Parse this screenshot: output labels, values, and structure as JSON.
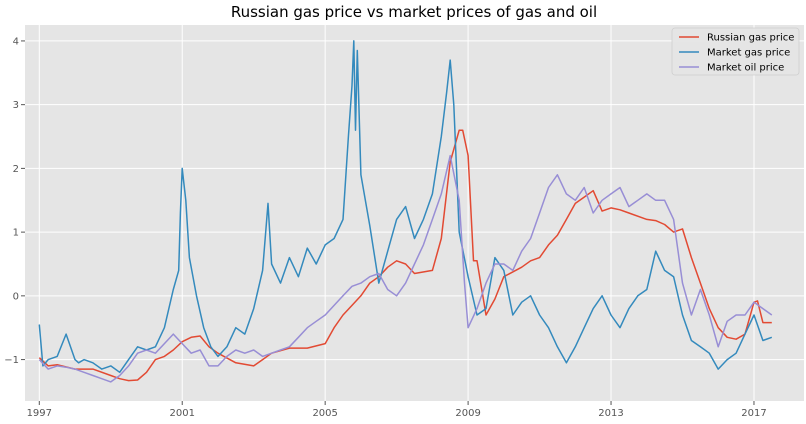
{
  "chart_data": {
    "type": "line",
    "title": "Russian gas price vs market prices of gas and oil",
    "xlabel": "",
    "ylabel": "",
    "xlim": [
      1996.6,
      2018.4
    ],
    "ylim": [
      -1.65,
      4.25
    ],
    "x_ticks": [
      {
        "value": 1997,
        "label": "1997"
      },
      {
        "value": 2001,
        "label": "2001"
      },
      {
        "value": 2005,
        "label": "2005"
      },
      {
        "value": 2009,
        "label": "2009"
      },
      {
        "value": 2013,
        "label": "2013"
      },
      {
        "value": 2017,
        "label": "2017"
      }
    ],
    "y_ticks": [
      {
        "value": -1,
        "label": "−1"
      },
      {
        "value": 0,
        "label": "0"
      },
      {
        "value": 1,
        "label": "1"
      },
      {
        "value": 2,
        "label": "2"
      },
      {
        "value": 3,
        "label": "3"
      },
      {
        "value": 4,
        "label": "4"
      }
    ],
    "grid": true,
    "legend_position": "top-right",
    "series": [
      {
        "name": "Russian gas price",
        "color": "#E24A33",
        "x": [
          1997.0,
          1997.25,
          1997.5,
          1998.0,
          1998.5,
          1999.0,
          1999.25,
          1999.5,
          1999.75,
          2000.0,
          2000.25,
          2000.5,
          2000.75,
          2001.0,
          2001.25,
          2001.5,
          2001.75,
          2002.0,
          2002.5,
          2003.0,
          2003.25,
          2003.5,
          2004.0,
          2004.5,
          2005.0,
          2005.25,
          2005.5,
          2005.75,
          2006.0,
          2006.25,
          2006.5,
          2006.75,
          2007.0,
          2007.25,
          2007.5,
          2008.0,
          2008.25,
          2008.5,
          2008.75,
          2008.85,
          2009.0,
          2009.15,
          2009.25,
          2009.5,
          2009.75,
          2010.0,
          2010.5,
          2010.75,
          2011.0,
          2011.25,
          2011.5,
          2011.75,
          2012.0,
          2012.25,
          2012.5,
          2012.75,
          2013.0,
          2013.25,
          2013.5,
          2014.0,
          2014.25,
          2014.5,
          2014.75,
          2015.0,
          2015.25,
          2015.5,
          2015.75,
          2016.0,
          2016.25,
          2016.5,
          2016.75,
          2017.0,
          2017.1,
          2017.25,
          2017.5
        ],
        "values": [
          -0.97,
          -1.1,
          -1.08,
          -1.15,
          -1.15,
          -1.25,
          -1.3,
          -1.33,
          -1.32,
          -1.2,
          -1.0,
          -0.95,
          -0.85,
          -0.72,
          -0.65,
          -0.63,
          -0.8,
          -0.9,
          -1.05,
          -1.1,
          -1.0,
          -0.9,
          -0.82,
          -0.82,
          -0.75,
          -0.5,
          -0.3,
          -0.15,
          0.0,
          0.2,
          0.3,
          0.45,
          0.55,
          0.5,
          0.35,
          0.4,
          0.9,
          2.1,
          2.6,
          2.6,
          2.2,
          0.55,
          0.55,
          -0.3,
          -0.05,
          0.3,
          0.45,
          0.55,
          0.6,
          0.8,
          0.95,
          1.2,
          1.45,
          1.55,
          1.65,
          1.33,
          1.38,
          1.35,
          1.3,
          1.2,
          1.18,
          1.12,
          1.0,
          1.05,
          0.6,
          0.2,
          -0.2,
          -0.5,
          -0.65,
          -0.68,
          -0.6,
          -0.1,
          -0.08,
          -0.42,
          -0.42
        ]
      },
      {
        "name": "Market gas price",
        "color": "#348ABD",
        "x": [
          1997.0,
          1997.1,
          1997.25,
          1997.5,
          1997.75,
          1998.0,
          1998.1,
          1998.25,
          1998.5,
          1998.75,
          1999.0,
          1999.25,
          1999.5,
          1999.75,
          2000.0,
          2000.25,
          2000.5,
          2000.75,
          2000.9,
          2000.95,
          2001.0,
          2001.1,
          2001.2,
          2001.4,
          2001.6,
          2001.8,
          2002.0,
          2002.25,
          2002.5,
          2002.75,
          2003.0,
          2003.25,
          2003.4,
          2003.5,
          2003.75,
          2004.0,
          2004.25,
          2004.5,
          2004.75,
          2005.0,
          2005.25,
          2005.5,
          2005.65,
          2005.75,
          2005.8,
          2005.85,
          2005.9,
          2006.0,
          2006.25,
          2006.5,
          2006.75,
          2007.0,
          2007.25,
          2007.5,
          2007.75,
          2008.0,
          2008.25,
          2008.4,
          2008.5,
          2008.6,
          2008.75,
          2009.0,
          2009.25,
          2009.5,
          2009.75,
          2010.0,
          2010.25,
          2010.5,
          2010.75,
          2011.0,
          2011.25,
          2011.5,
          2011.75,
          2012.0,
          2012.25,
          2012.5,
          2012.75,
          2013.0,
          2013.25,
          2013.5,
          2013.75,
          2014.0,
          2014.25,
          2014.5,
          2014.75,
          2015.0,
          2015.25,
          2015.5,
          2015.75,
          2016.0,
          2016.25,
          2016.5,
          2016.75,
          2017.0,
          2017.25,
          2017.5
        ],
        "values": [
          -0.45,
          -1.1,
          -1.0,
          -0.95,
          -0.6,
          -1.0,
          -1.05,
          -1.0,
          -1.05,
          -1.15,
          -1.1,
          -1.2,
          -1.0,
          -0.8,
          -0.85,
          -0.8,
          -0.5,
          0.1,
          0.4,
          1.3,
          2.0,
          1.5,
          0.6,
          0.0,
          -0.5,
          -0.8,
          -0.95,
          -0.8,
          -0.5,
          -0.6,
          -0.2,
          0.4,
          1.45,
          0.5,
          0.2,
          0.6,
          0.3,
          0.75,
          0.5,
          0.8,
          0.9,
          1.2,
          2.5,
          3.3,
          4.0,
          2.6,
          3.85,
          1.9,
          1.1,
          0.2,
          0.7,
          1.2,
          1.4,
          0.9,
          1.2,
          1.6,
          2.5,
          3.2,
          3.7,
          3.0,
          1.0,
          0.3,
          -0.3,
          -0.2,
          0.6,
          0.4,
          -0.3,
          -0.1,
          0.0,
          -0.3,
          -0.5,
          -0.8,
          -1.05,
          -0.8,
          -0.5,
          -0.2,
          0.0,
          -0.3,
          -0.5,
          -0.2,
          0.0,
          0.1,
          0.7,
          0.4,
          0.3,
          -0.3,
          -0.7,
          -0.8,
          -0.9,
          -1.15,
          -1.0,
          -0.9,
          -0.6,
          -0.3,
          -0.7,
          -0.65
        ]
      },
      {
        "name": "Market oil price",
        "color": "#988ED5",
        "x": [
          1997.0,
          1997.25,
          1997.5,
          1997.75,
          1998.0,
          1998.25,
          1998.5,
          1998.75,
          1999.0,
          1999.25,
          1999.5,
          1999.75,
          2000.0,
          2000.25,
          2000.5,
          2000.75,
          2001.0,
          2001.25,
          2001.5,
          2001.75,
          2002.0,
          2002.25,
          2002.5,
          2002.75,
          2003.0,
          2003.25,
          2003.5,
          2003.75,
          2004.0,
          2004.25,
          2004.5,
          2004.75,
          2005.0,
          2005.25,
          2005.5,
          2005.75,
          2006.0,
          2006.25,
          2006.5,
          2006.75,
          2007.0,
          2007.25,
          2007.5,
          2007.75,
          2008.0,
          2008.25,
          2008.5,
          2008.75,
          2008.9,
          2009.0,
          2009.25,
          2009.5,
          2009.75,
          2010.0,
          2010.25,
          2010.5,
          2010.75,
          2011.0,
          2011.25,
          2011.5,
          2011.75,
          2012.0,
          2012.25,
          2012.5,
          2012.75,
          2013.0,
          2013.25,
          2013.5,
          2013.75,
          2014.0,
          2014.25,
          2014.5,
          2014.75,
          2015.0,
          2015.25,
          2015.5,
          2015.75,
          2016.0,
          2016.25,
          2016.5,
          2016.75,
          2017.0,
          2017.25,
          2017.5
        ],
        "values": [
          -1.0,
          -1.15,
          -1.1,
          -1.12,
          -1.15,
          -1.2,
          -1.25,
          -1.3,
          -1.35,
          -1.25,
          -1.1,
          -0.9,
          -0.85,
          -0.9,
          -0.75,
          -0.6,
          -0.75,
          -0.9,
          -0.85,
          -1.1,
          -1.1,
          -0.95,
          -0.85,
          -0.9,
          -0.85,
          -0.95,
          -0.9,
          -0.85,
          -0.8,
          -0.65,
          -0.5,
          -0.4,
          -0.3,
          -0.15,
          0.0,
          0.15,
          0.2,
          0.3,
          0.35,
          0.1,
          0.0,
          0.2,
          0.5,
          0.8,
          1.2,
          1.6,
          2.2,
          1.5,
          0.2,
          -0.5,
          -0.2,
          0.2,
          0.5,
          0.5,
          0.4,
          0.7,
          0.9,
          1.3,
          1.7,
          1.9,
          1.6,
          1.5,
          1.7,
          1.3,
          1.5,
          1.6,
          1.7,
          1.4,
          1.5,
          1.6,
          1.5,
          1.5,
          1.2,
          0.2,
          -0.3,
          0.1,
          -0.3,
          -0.8,
          -0.4,
          -0.3,
          -0.3,
          -0.1,
          -0.2,
          -0.3
        ]
      }
    ]
  }
}
